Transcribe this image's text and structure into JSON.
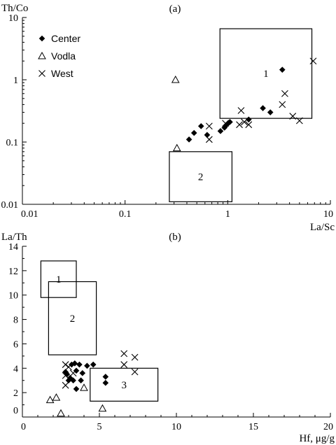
{
  "chart_data": [
    {
      "type": "scatter",
      "panel_label": "(a)",
      "ylabel": "Th/Co",
      "xlabel": "La/Sc",
      "xscale": "log",
      "yscale": "log",
      "xlim": [
        0.01,
        10
      ],
      "ylim": [
        0.01,
        10
      ],
      "xticks": [
        0.01,
        0.1,
        1,
        10
      ],
      "yticks": [
        0.01,
        0.1,
        1,
        10
      ],
      "xtick_labels": [
        "0.01",
        "0.1",
        "1",
        "10"
      ],
      "ytick_labels": [
        "0.01",
        "0.1",
        "1",
        "10"
      ],
      "legend": {
        "position": "top-left",
        "entries": [
          "Center",
          "Vodla",
          "West"
        ]
      },
      "series": [
        {
          "name": "Center",
          "marker": "diamond",
          "points": [
            [
              0.42,
              0.11
            ],
            [
              0.47,
              0.14
            ],
            [
              0.55,
              0.18
            ],
            [
              0.63,
              0.13
            ],
            [
              0.85,
              0.15
            ],
            [
              0.93,
              0.17
            ],
            [
              0.98,
              0.19
            ],
            [
              1.05,
              0.21
            ],
            [
              1.6,
              0.23
            ],
            [
              2.2,
              0.35
            ],
            [
              2.6,
              0.3
            ],
            [
              3.4,
              1.45
            ]
          ]
        },
        {
          "name": "Vodla",
          "marker": "triangle",
          "points": [
            [
              0.31,
              1.0
            ],
            [
              0.32,
              0.08
            ]
          ]
        },
        {
          "name": "West",
          "marker": "x",
          "points": [
            [
              0.66,
              0.18
            ],
            [
              0.66,
              0.11
            ],
            [
              0.95,
              0.2
            ],
            [
              1.3,
              0.19
            ],
            [
              1.35,
              0.32
            ],
            [
              1.45,
              0.21
            ],
            [
              1.6,
              0.19
            ],
            [
              3.4,
              0.4
            ],
            [
              3.6,
              0.6
            ],
            [
              4.3,
              0.26
            ],
            [
              5.0,
              0.22
            ],
            [
              6.8,
              2.0
            ]
          ]
        }
      ],
      "regions": [
        {
          "label": "1",
          "x": [
            0.84,
            6.6
          ],
          "y": [
            0.24,
            6.6
          ]
        },
        {
          "label": "2",
          "x": [
            0.27,
            1.1
          ],
          "y": [
            0.011,
            0.07
          ]
        }
      ]
    },
    {
      "type": "scatter",
      "panel_label": "(b)",
      "ylabel": "La/Th",
      "xlabel": "Hf, μg/g",
      "xlim": [
        0,
        20
      ],
      "ylim": [
        0,
        14
      ],
      "xticks": [
        0,
        5,
        10,
        15,
        20
      ],
      "yticks": [
        0,
        2,
        4,
        6,
        8,
        10,
        12,
        14
      ],
      "xtick_labels": [
        "0",
        "5",
        "10",
        "15",
        "20"
      ],
      "ytick_labels": [
        "0",
        "2",
        "4",
        "6",
        "8",
        "10",
        "12",
        "14"
      ],
      "series": [
        {
          "name": "Center",
          "marker": "diamond",
          "points": [
            [
              2.8,
              3.7
            ],
            [
              2.9,
              3.5
            ],
            [
              3.0,
              3.0
            ],
            [
              3.1,
              3.2
            ],
            [
              3.2,
              4.3
            ],
            [
              3.3,
              3.0
            ],
            [
              3.4,
              4.4
            ],
            [
              3.5,
              3.8
            ],
            [
              3.5,
              2.3
            ],
            [
              3.7,
              4.3
            ],
            [
              3.8,
              3.0
            ],
            [
              3.9,
              3.6
            ],
            [
              4.2,
              4.2
            ],
            [
              4.6,
              4.3
            ],
            [
              5.4,
              3.3
            ],
            [
              5.4,
              2.8
            ]
          ]
        },
        {
          "name": "Vodla",
          "marker": "triangle",
          "points": [
            [
              1.8,
              1.4
            ],
            [
              2.2,
              1.6
            ],
            [
              2.5,
              0.3
            ],
            [
              4.0,
              2.4
            ],
            [
              5.2,
              0.7
            ]
          ]
        },
        {
          "name": "West",
          "marker": "x",
          "points": [
            [
              2.8,
              4.3
            ],
            [
              2.8,
              3.4
            ],
            [
              2.8,
              2.6
            ],
            [
              3.0,
              4.1
            ],
            [
              3.3,
              3.6
            ],
            [
              6.6,
              5.2
            ],
            [
              6.6,
              4.3
            ],
            [
              7.3,
              4.9
            ],
            [
              7.3,
              3.7
            ]
          ]
        }
      ],
      "regions": [
        {
          "label": "1",
          "x": [
            1.2,
            3.5
          ],
          "y": [
            9.8,
            12.8
          ]
        },
        {
          "label": "2",
          "x": [
            1.7,
            4.8
          ],
          "y": [
            5.1,
            11.1
          ]
        },
        {
          "label": "3",
          "x": [
            4.4,
            8.8
          ],
          "y": [
            1.3,
            4.0
          ]
        }
      ]
    }
  ]
}
